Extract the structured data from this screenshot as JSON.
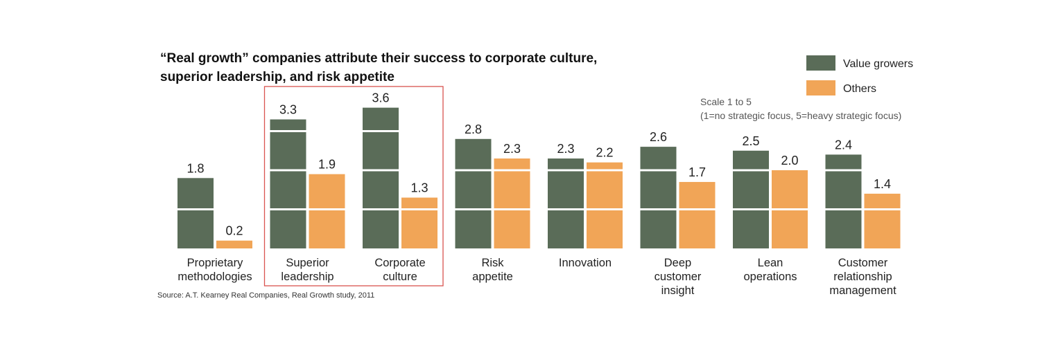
{
  "chart_data": {
    "type": "bar",
    "title": "“Real growth” companies attribute their success to corporate culture,",
    "title_line2": "superior leadership, and risk appetite",
    "categories": [
      [
        "Proprietary",
        "methodologies"
      ],
      [
        "Superior",
        "leadership"
      ],
      [
        "Corporate",
        "culture"
      ],
      [
        "Risk",
        "appetite"
      ],
      [
        "Innovation"
      ],
      [
        "Deep",
        "customer",
        "insight"
      ],
      [
        "Lean",
        "operations"
      ],
      [
        "Customer",
        "relationship",
        "management"
      ]
    ],
    "series": [
      {
        "name": "Value growers",
        "color": "#5a6c58",
        "values": [
          1.8,
          3.3,
          3.6,
          2.8,
          2.3,
          2.6,
          2.5,
          2.4
        ],
        "labels": [
          "1.8",
          "3.3",
          "3.6",
          "2.8",
          "2.3",
          "2.6",
          "2.5",
          "2.4"
        ]
      },
      {
        "name": "Others",
        "color": "#f1a557",
        "values": [
          0.2,
          1.9,
          1.3,
          2.3,
          2.2,
          1.7,
          2.0,
          1.4
        ],
        "labels": [
          "0.2",
          "1.9",
          "1.3",
          "2.3",
          "2.2",
          "1.7",
          "2.0",
          "1.4"
        ]
      }
    ],
    "ylim": [
      0,
      4
    ],
    "gridlines_white": [
      1,
      2,
      3
    ],
    "legend_position": "top-right",
    "scale_note_line1": "Scale 1 to 5",
    "scale_note_line2": "(1=no strategic focus, 5=heavy strategic focus)",
    "highlight_categories": [
      1,
      2
    ],
    "highlight_color": "#d9534f",
    "source": "Source: A.T. Kearney Real Companies, Real Growth study, 2011"
  }
}
